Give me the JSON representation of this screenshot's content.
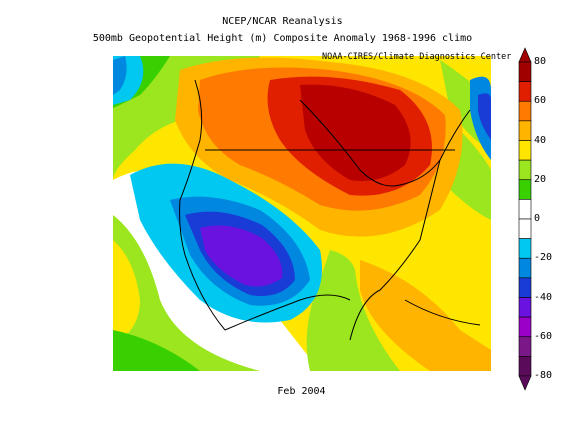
{
  "title_line1": "NCEP/NCAR Reanalysis",
  "title_line2": "500mb Geopotential Height (m) Composite Anomaly 1968-1996 climo",
  "credit": "NOAA-CIRES/Climate Diagnostics Center",
  "period": "Feb 2004",
  "colorbar": {
    "ticks": [
      "80",
      "60",
      "40",
      "20",
      "0",
      "-20",
      "-40",
      "-60",
      "-80"
    ],
    "colors": [
      "#a00000",
      "#e01e00",
      "#ff7a00",
      "#ffb400",
      "#ffe600",
      "#9be61e",
      "#38d000",
      "#ffffff",
      "#ffffff",
      "#00c8f0",
      "#0088e0",
      "#1a3cd6",
      "#6a12e0",
      "#9a00c8",
      "#7a1888",
      "#5a0c5a"
    ]
  }
}
